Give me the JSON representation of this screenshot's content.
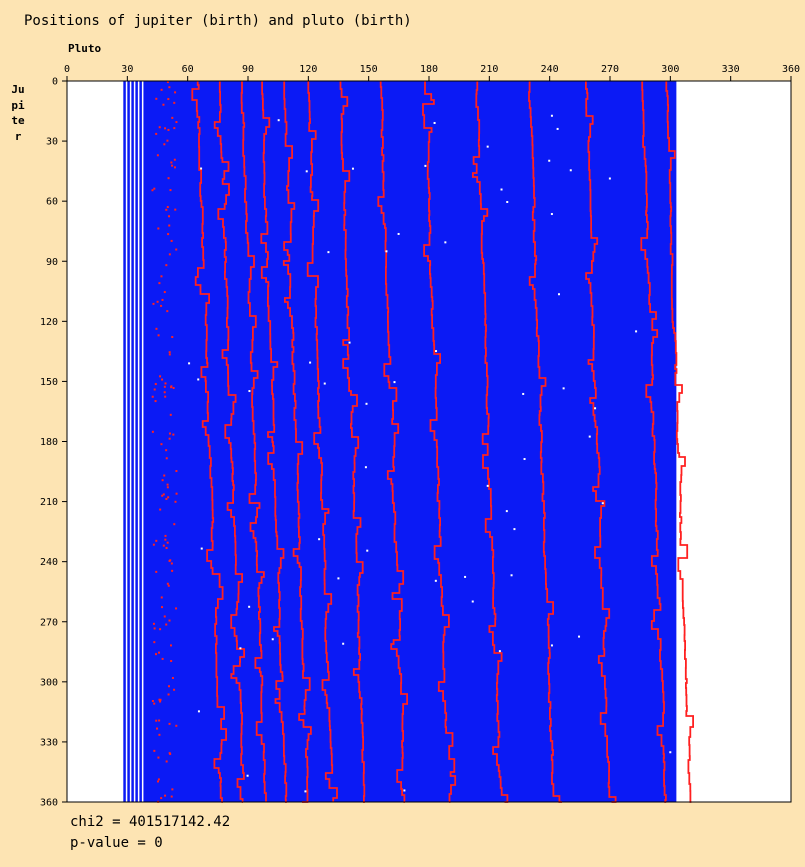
{
  "chart_data": {
    "type": "heatmap",
    "title": "Positions of jupiter (birth) and pluto (birth)",
    "xlabel": "Pluto",
    "ylabel": "Jupiter",
    "xlim": [
      0,
      360
    ],
    "ylim": [
      0,
      360
    ],
    "x_ticks": [
      "0",
      "30",
      "60",
      "90",
      "120",
      "150",
      "180",
      "210",
      "240",
      "270",
      "300",
      "330",
      "360"
    ],
    "y_ticks": [
      "0",
      "30",
      "60",
      "90",
      "120",
      "150",
      "180",
      "210",
      "240",
      "270",
      "300",
      "330",
      "360"
    ],
    "x_axis_position": "top",
    "y_inverted": true,
    "filled_band": {
      "x_start": 38,
      "x_end": 303,
      "color": "#0b1af5"
    },
    "thin_stripes_x": [
      28,
      30,
      32,
      34,
      36
    ],
    "red_curve_x_at_top": [
      65,
      76,
      87,
      97,
      108,
      120,
      136,
      156,
      178,
      204,
      230,
      258,
      286,
      298
    ],
    "red_curve_drift_over_range": 12,
    "colors": {
      "background": "#fde4b3",
      "plot_bg": "#ffffff",
      "band": "#0b1af5",
      "curves": "#ff2020",
      "dots": "#ffffff"
    }
  },
  "stats": {
    "chi2": "chi2 = 401517142.42",
    "pvalue": "p-value = 0"
  }
}
